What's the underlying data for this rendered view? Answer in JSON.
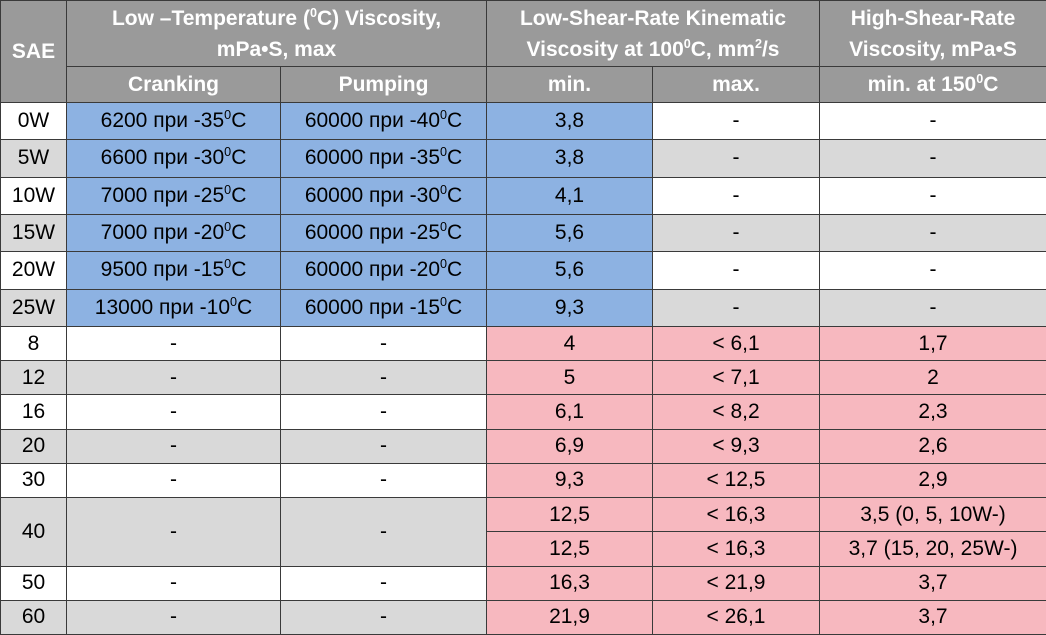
{
  "header": {
    "sae": "SAE",
    "low_temp": {
      "line1_pre": "Low –Temperature (",
      "line1_sup": "0",
      "line1_post": "C) Viscosity,",
      "line2": "mPa•S, max"
    },
    "low_shear": {
      "line1": "Low-Shear-Rate Kinematic",
      "line2_pre": "Viscosity at 100",
      "line2_sup": "0",
      "line2_mid": "C, mm",
      "line2_sup2": "2",
      "line2_post": "/s"
    },
    "high_shear": {
      "line1": "High-Shear-Rate",
      "line2": "Viscosity, mPa•S"
    },
    "cranking": "Cranking",
    "pumping": "Pumping",
    "min": "min.",
    "max": "max.",
    "min150_pre": "min. at 150",
    "min150_sup": "0",
    "min150_post": "C"
  },
  "winter_rows": [
    {
      "sae": "0W",
      "crank_val": "6200 при -35",
      "pump_val": "60000 при -40",
      "min": "3,8",
      "max": "-",
      "hs": "-",
      "shade": "white"
    },
    {
      "sae": "5W",
      "crank_val": "6600 при -30",
      "pump_val": "60000 при -35",
      "min": "3,8",
      "max": "-",
      "hs": "-",
      "shade": "gray"
    },
    {
      "sae": "10W",
      "crank_val": "7000 при -25",
      "pump_val": "60000 при -30",
      "min": "4,1",
      "max": "-",
      "hs": "-",
      "shade": "white"
    },
    {
      "sae": "15W",
      "crank_val": "7000 при -20",
      "pump_val": "60000 при -25",
      "min": "5,6",
      "max": "-",
      "hs": "-",
      "shade": "gray"
    },
    {
      "sae": "20W",
      "crank_val": "9500 при -15",
      "pump_val": "60000 при -20",
      "min": "5,6",
      "max": "-",
      "hs": "-",
      "shade": "white"
    },
    {
      "sae": "25W",
      "crank_val": "13000 при -10",
      "pump_val": "60000 при -15",
      "min": "9,3",
      "max": "-",
      "hs": "-",
      "shade": "gray"
    }
  ],
  "degree_sup": "0",
  "degree_unit": "C",
  "summer_rows": [
    {
      "sae": "8",
      "crank": "-",
      "pump": "-",
      "min": "4",
      "max": "< 6,1",
      "hs": "1,7",
      "shade": "white"
    },
    {
      "sae": "12",
      "crank": "-",
      "pump": "-",
      "min": "5",
      "max": "< 7,1",
      "hs": "2",
      "shade": "gray"
    },
    {
      "sae": "16",
      "crank": "-",
      "pump": "-",
      "min": "6,1",
      "max": "< 8,2",
      "hs": "2,3",
      "shade": "white"
    },
    {
      "sae": "20",
      "crank": "-",
      "pump": "-",
      "min": "6,9",
      "max": "< 9,3",
      "hs": "2,6",
      "shade": "gray"
    },
    {
      "sae": "30",
      "crank": "-",
      "pump": "-",
      "min": "9,3",
      "max": "< 12,5",
      "hs": "2,9",
      "shade": "white"
    }
  ],
  "row40": {
    "sae": "40",
    "crank": "-",
    "pump": "-",
    "a": {
      "min": "12,5",
      "max": "< 16,3",
      "hs": "3,5 (0, 5, 10W-)"
    },
    "b": {
      "min": "12,5",
      "max": "< 16,3",
      "hs": "3,7 (15, 20, 25W-)"
    }
  },
  "tail_rows": [
    {
      "sae": "50",
      "crank": "-",
      "pump": "-",
      "min": "16,3",
      "max": "< 21,9",
      "hs": "3,7",
      "shade": "white"
    },
    {
      "sae": "60",
      "crank": "-",
      "pump": "-",
      "min": "21,9",
      "max": "< 26,1",
      "hs": "3,7",
      "shade": "gray"
    }
  ]
}
